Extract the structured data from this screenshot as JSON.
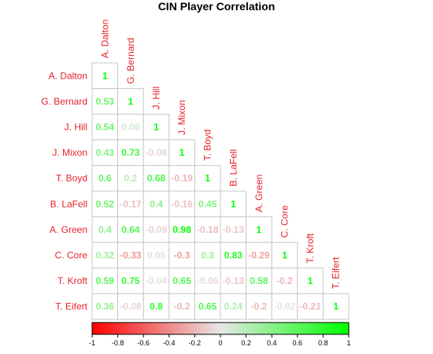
{
  "chart_data": {
    "type": "heatmap",
    "title": "CIN Player Correlation",
    "players": [
      "A. Dalton",
      "G. Bernard",
      "J. Hill",
      "J. Mixon",
      "T. Boyd",
      "B. LaFell",
      "A. Green",
      "C. Core",
      "T. Kroft",
      "T. Eifert"
    ],
    "values": [
      [
        1
      ],
      [
        0.53,
        1
      ],
      [
        0.54,
        0.08,
        1
      ],
      [
        0.43,
        0.73,
        -0.08,
        1
      ],
      [
        0.6,
        0.2,
        0.68,
        -0.19,
        1
      ],
      [
        0.52,
        -0.17,
        0.4,
        -0.16,
        0.45,
        1
      ],
      [
        0.4,
        0.64,
        -0.09,
        0.98,
        -0.18,
        -0.13,
        1
      ],
      [
        0.32,
        -0.33,
        0.05,
        -0.3,
        0.3,
        0.83,
        -0.29,
        1
      ],
      [
        0.59,
        0.75,
        -0.04,
        0.65,
        -0.06,
        -0.13,
        0.58,
        -0.2,
        1
      ],
      [
        0.36,
        -0.08,
        0.8,
        -0.2,
        0.65,
        0.24,
        -0.2,
        -0.02,
        -0.21,
        1
      ]
    ],
    "colorbar": {
      "range": [
        -1,
        1
      ],
      "ticks": [
        -1,
        -0.8,
        -0.6,
        -0.4,
        -0.2,
        0,
        0.2,
        0.4,
        0.6,
        0.8,
        1
      ],
      "low_color": "#ff0000",
      "mid_color": "#e6e6e6",
      "high_color": "#00ff00"
    },
    "label_color": "#e8212b"
  }
}
